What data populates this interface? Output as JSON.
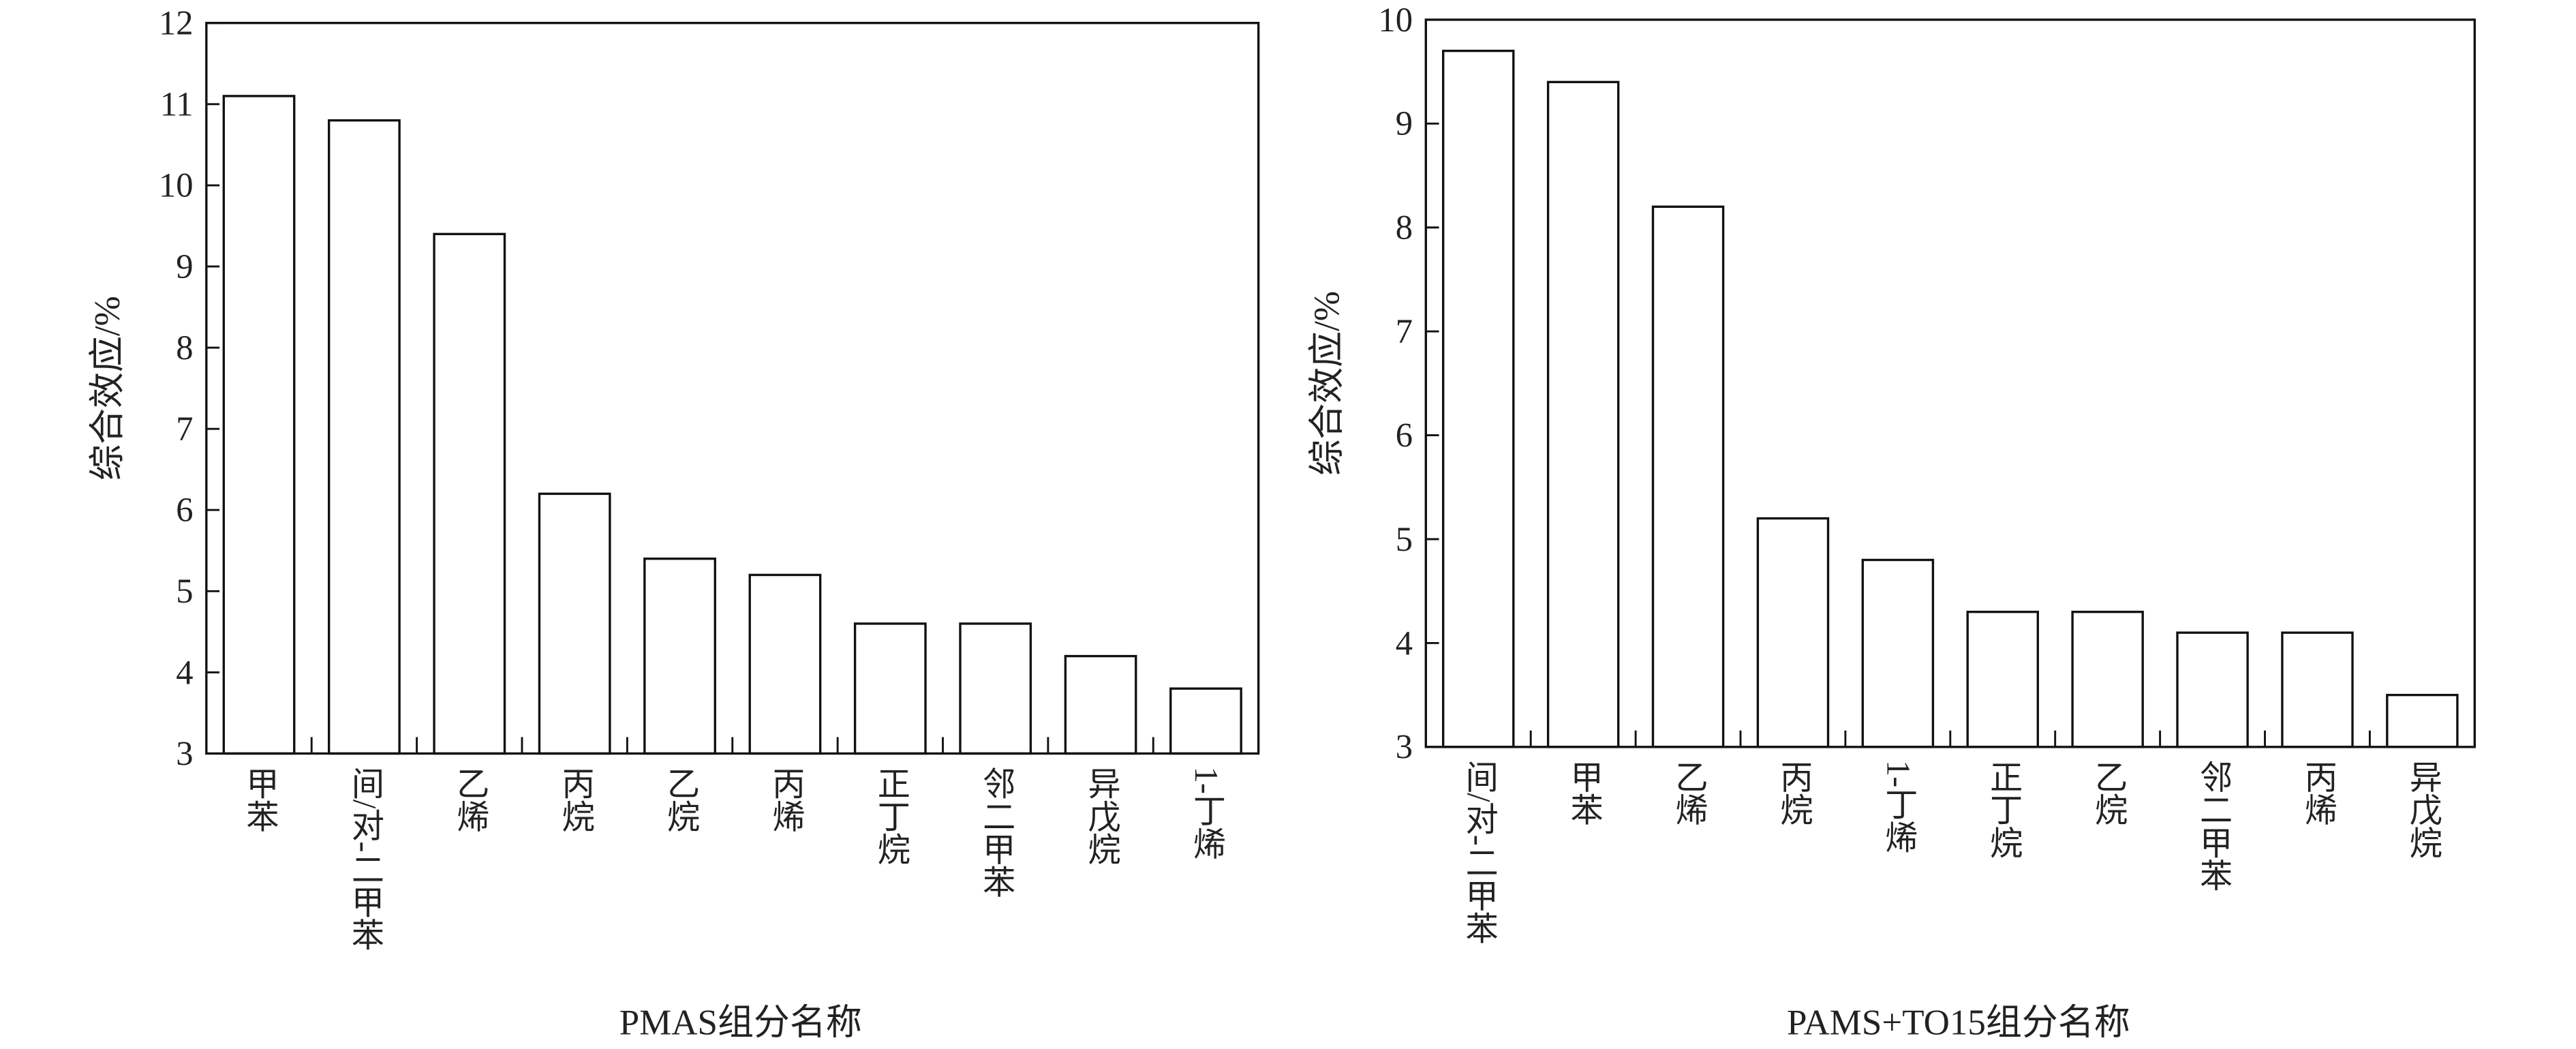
{
  "chart_data": [
    {
      "type": "bar",
      "y_label": "综合效应/%",
      "x_label": "PMAS组分名称",
      "categories": [
        "甲苯",
        "间/对-二甲苯",
        "乙烯",
        "丙烷",
        "乙烷",
        "丙烯",
        "正丁烷",
        "邻二甲苯",
        "异戊烷",
        "1-丁烯"
      ],
      "values": [
        11.1,
        10.8,
        9.4,
        6.2,
        5.4,
        5.2,
        4.6,
        4.6,
        4.2,
        3.8
      ],
      "color": "#ffffff",
      "ylim": [
        3,
        12
      ],
      "yticks": [
        3,
        4,
        5,
        6,
        7,
        8,
        9,
        10,
        11,
        12
      ]
    },
    {
      "type": "bar",
      "y_label": "综合效应/%",
      "x_label": "PAMS+TO15组分名称",
      "categories": [
        "间/对-二甲苯",
        "甲苯",
        "乙烯",
        "丙烷",
        "1-丁烯",
        "正丁烷",
        "乙烷",
        "邻二甲苯",
        "丙烯",
        "异戊烷"
      ],
      "values": [
        9.7,
        9.4,
        8.2,
        5.2,
        4.8,
        4.3,
        4.3,
        4.1,
        4.1,
        3.5
      ],
      "color": "#ffffff",
      "ylim": [
        3,
        10
      ],
      "yticks": [
        3,
        4,
        5,
        6,
        7,
        8,
        9,
        10
      ]
    }
  ]
}
